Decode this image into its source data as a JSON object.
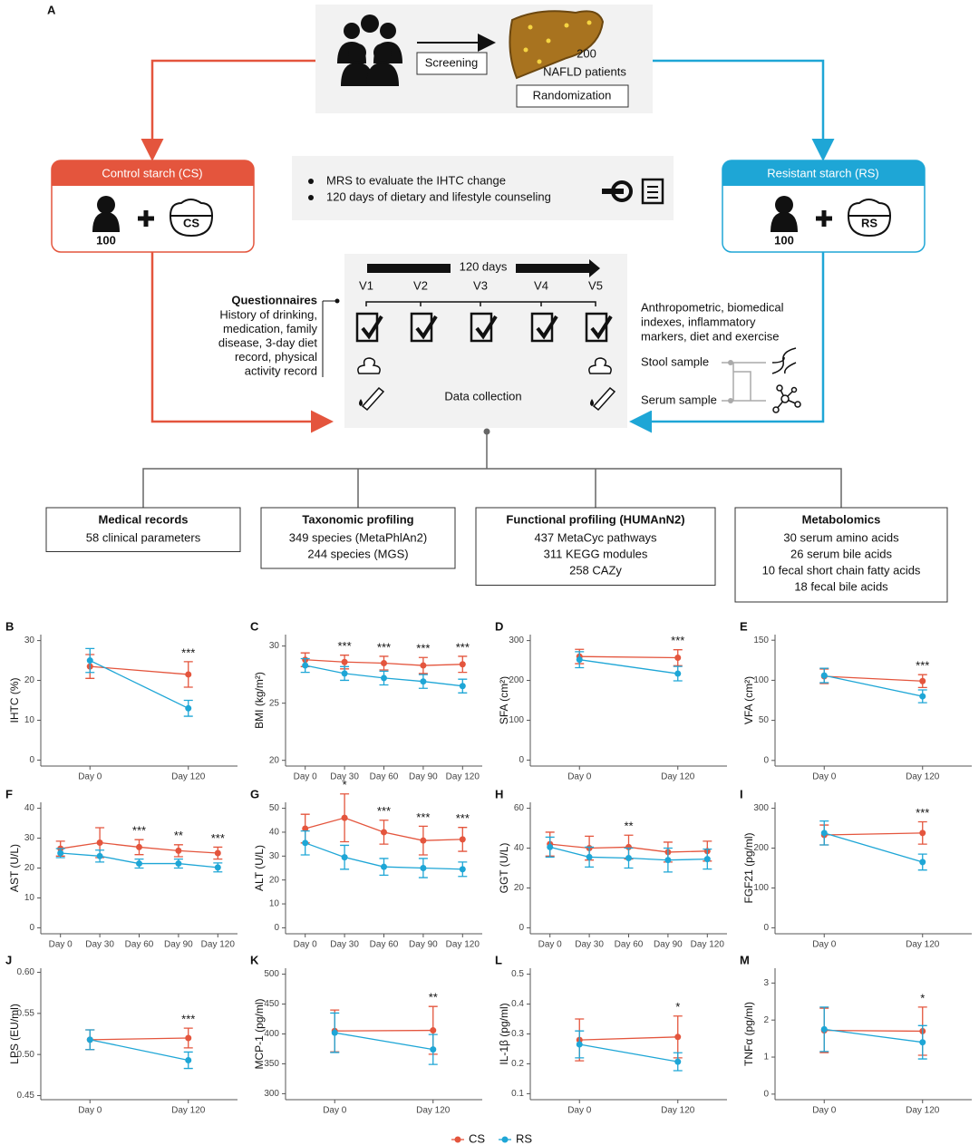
{
  "diagram": {
    "panel": "A",
    "screening": "Screening",
    "patients_count": 200,
    "patients": "NAFLD patients",
    "randomization": "Randomization",
    "cs_group": {
      "title": "Control starch (CS)",
      "count": 100,
      "bowl": "CS"
    },
    "rs_group": {
      "title": "Resistant starch (RS)",
      "count": 100,
      "bowl": "RS"
    },
    "protocol": [
      "MRS to evaluate the IHTC change",
      "120 days of dietary and lifestyle counseling"
    ],
    "duration": "120 days",
    "visits": [
      "V1",
      "V2",
      "V3",
      "V4",
      "V5"
    ],
    "questionnaires": {
      "title": "Questionnaires",
      "lines": [
        "History of drinking,",
        "medication, family",
        "disease, 3-day diet",
        "record, physical",
        "activity record"
      ]
    },
    "measures": [
      "Anthropometric, biomedical",
      "indexes, inflammatory",
      "markers, diet and exercise"
    ],
    "stool": "Stool sample",
    "serum": "Serum sample",
    "data_collection": "Data collection",
    "outputs": [
      {
        "title": "Medical records",
        "lines": [
          "58 clinical parameters"
        ]
      },
      {
        "title": "Taxonomic profiling",
        "lines": [
          "349 species (MetaPhlAn2)",
          "244  species (MGS)"
        ]
      },
      {
        "title": "Functional  profiling (HUMAnN2)",
        "lines": [
          "437 MetaCyc pathways",
          "311 KEGG modules",
          "258 CAZy"
        ]
      },
      {
        "title": "Metabolomics",
        "lines": [
          "30 serum amino acids",
          "26 serum bile acids",
          "10 fecal short chain fatty acids",
          "18 fecal bile acids"
        ]
      }
    ]
  },
  "chart_data": [
    {
      "type": "line",
      "panel": "B",
      "ylabel": "IHTC (%)",
      "categories": [
        "Day 0",
        "Day 120"
      ],
      "series": [
        {
          "name": "CS",
          "color": "#e4553d",
          "values": [
            23.5,
            21.5
          ],
          "errors": [
            3,
            3.2
          ]
        },
        {
          "name": "RS",
          "color": "#1ea6d6",
          "values": [
            25,
            13
          ],
          "errors": [
            3,
            2
          ]
        }
      ],
      "significance": [
        null,
        "***"
      ],
      "ylim": [
        -1.5,
        31.5
      ],
      "yticks": [
        0,
        10,
        20,
        30
      ]
    },
    {
      "type": "line",
      "panel": "C",
      "ylabel": "BMI (kg/m²)",
      "categories": [
        "Day 0",
        "Day 30",
        "Day 60",
        "Day 90",
        "Day 120"
      ],
      "series": [
        {
          "name": "CS",
          "color": "#e4553d",
          "values": [
            28.8,
            28.6,
            28.5,
            28.3,
            28.4
          ],
          "errors": [
            0.6,
            0.6,
            0.6,
            0.7,
            0.7
          ]
        },
        {
          "name": "RS",
          "color": "#1ea6d6",
          "values": [
            28.3,
            27.6,
            27.2,
            26.9,
            26.5
          ],
          "errors": [
            0.6,
            0.6,
            0.6,
            0.6,
            0.6
          ]
        }
      ],
      "significance": [
        null,
        "***",
        "***",
        "***",
        "***"
      ],
      "ylim": [
        19.5,
        31
      ],
      "yticks": [
        20,
        25,
        30
      ]
    },
    {
      "type": "line",
      "panel": "D",
      "ylabel": "SFA (cm²)",
      "categories": [
        "Day 0",
        "Day 120"
      ],
      "series": [
        {
          "name": "CS",
          "color": "#e4553d",
          "values": [
            260,
            257
          ],
          "errors": [
            18,
            20
          ]
        },
        {
          "name": "RS",
          "color": "#1ea6d6",
          "values": [
            252,
            217
          ],
          "errors": [
            20,
            18
          ]
        }
      ],
      "significance": [
        null,
        "***"
      ],
      "ylim": [
        -15,
        315
      ],
      "yticks": [
        0,
        100,
        200,
        300
      ]
    },
    {
      "type": "line",
      "panel": "E",
      "ylabel": "VFA (cm²)",
      "categories": [
        "Day 0",
        "Day 120"
      ],
      "series": [
        {
          "name": "CS",
          "color": "#e4553d",
          "values": [
            105,
            99
          ],
          "errors": [
            9,
            8
          ]
        },
        {
          "name": "RS",
          "color": "#1ea6d6",
          "values": [
            106,
            80
          ],
          "errors": [
            9,
            8
          ]
        }
      ],
      "significance": [
        null,
        "***"
      ],
      "ylim": [
        -7,
        157
      ],
      "yticks": [
        0,
        50,
        100,
        150
      ]
    },
    {
      "type": "line",
      "panel": "F",
      "ylabel": "AST (U/L)",
      "categories": [
        "Day 0",
        "Day 30",
        "Day 60",
        "Day 90",
        "Day 120"
      ],
      "series": [
        {
          "name": "CS",
          "color": "#e4553d",
          "values": [
            26.5,
            28.5,
            27,
            25.8,
            25
          ],
          "errors": [
            2.5,
            5,
            2.5,
            2,
            2
          ]
        },
        {
          "name": "RS",
          "color": "#1ea6d6",
          "values": [
            25,
            24,
            21.5,
            21.5,
            20.2
          ],
          "errors": [
            1.5,
            2,
            1.5,
            1.5,
            1.5
          ]
        }
      ],
      "significance": [
        null,
        null,
        "***",
        "**",
        "***"
      ],
      "ylim": [
        -2,
        42
      ],
      "yticks": [
        0,
        10,
        20,
        30,
        40
      ]
    },
    {
      "type": "line",
      "panel": "G",
      "ylabel": "ALT (U/L)",
      "categories": [
        "Day 0",
        "Day 30",
        "Day 60",
        "Day 90",
        "Day 120"
      ],
      "series": [
        {
          "name": "CS",
          "color": "#e4553d",
          "values": [
            41.5,
            46,
            40,
            36.5,
            37
          ],
          "errors": [
            6,
            10,
            5,
            6,
            5
          ]
        },
        {
          "name": "RS",
          "color": "#1ea6d6",
          "values": [
            35.5,
            29.5,
            25.5,
            25,
            24.5
          ],
          "errors": [
            5,
            5,
            3.5,
            4,
            3
          ]
        }
      ],
      "significance": [
        null,
        "*",
        "***",
        "***",
        "***"
      ],
      "ylim": [
        -2.5,
        52.5
      ],
      "yticks": [
        0,
        10,
        20,
        30,
        40,
        50
      ]
    },
    {
      "type": "line",
      "panel": "H",
      "ylabel": "GGT (U/L)",
      "categories": [
        "Day 0",
        "Day 30",
        "Day 60",
        "Day 90",
        "Day 120"
      ],
      "series": [
        {
          "name": "CS",
          "color": "#e4553d",
          "values": [
            42,
            40,
            40.5,
            38,
            38.5
          ],
          "errors": [
            6,
            6,
            6,
            5,
            5
          ]
        },
        {
          "name": "RS",
          "color": "#1ea6d6",
          "values": [
            40.5,
            35.5,
            35,
            34,
            34.5
          ],
          "errors": [
            5,
            5,
            5,
            6,
            5
          ]
        }
      ],
      "significance": [
        null,
        null,
        "**",
        null,
        null
      ],
      "ylim": [
        -3,
        63
      ],
      "yticks": [
        0,
        20,
        40,
        60
      ]
    },
    {
      "type": "line",
      "panel": "I",
      "ylabel": "FGF21 (pg/ml)",
      "categories": [
        "Day 0",
        "Day 120"
      ],
      "series": [
        {
          "name": "CS",
          "color": "#e4553d",
          "values": [
            233,
            238
          ],
          "errors": [
            25,
            28
          ]
        },
        {
          "name": "RS",
          "color": "#1ea6d6",
          "values": [
            238,
            165
          ],
          "errors": [
            30,
            20
          ]
        }
      ],
      "significance": [
        null,
        "***"
      ],
      "ylim": [
        -15,
        315
      ],
      "yticks": [
        0,
        100,
        200,
        300
      ]
    },
    {
      "type": "line",
      "panel": "J",
      "ylabel": "LPS (EU/ml)",
      "categories": [
        "Day 0",
        "Day 120"
      ],
      "series": [
        {
          "name": "CS",
          "color": "#e4553d",
          "values": [
            0.518,
            0.52
          ],
          "errors": [
            0.012,
            0.012
          ]
        },
        {
          "name": "RS",
          "color": "#1ea6d6",
          "values": [
            0.518,
            0.493
          ],
          "errors": [
            0.012,
            0.01
          ]
        }
      ],
      "significance": [
        null,
        "***"
      ],
      "ylim": [
        0.445,
        0.605
      ],
      "yticks": [
        {
          "value": 0.45,
          "label": "0.45"
        },
        {
          "value": 0.5,
          "label": "0.50"
        },
        {
          "value": 0.55,
          "label": "0.55"
        },
        {
          "value": 0.6,
          "label": "0.60"
        }
      ]
    },
    {
      "type": "line",
      "panel": "K",
      "ylabel": "MCP-1 (pg/ml)",
      "categories": [
        "Day 0",
        "Day 120"
      ],
      "series": [
        {
          "name": "CS",
          "color": "#e4553d",
          "values": [
            405,
            406
          ],
          "errors": [
            35,
            40
          ]
        },
        {
          "name": "RS",
          "color": "#1ea6d6",
          "values": [
            402,
            374
          ],
          "errors": [
            33,
            25
          ]
        }
      ],
      "significance": [
        null,
        "**"
      ],
      "ylim": [
        290,
        510
      ],
      "yticks": [
        300,
        350,
        400,
        450,
        500
      ]
    },
    {
      "type": "line",
      "panel": "L",
      "ylabel": "IL-1β (pg/ml)",
      "categories": [
        "Day 0",
        "Day 120"
      ],
      "series": [
        {
          "name": "CS",
          "color": "#e4553d",
          "values": [
            0.28,
            0.29
          ],
          "errors": [
            0.07,
            0.07
          ]
        },
        {
          "name": "RS",
          "color": "#1ea6d6",
          "values": [
            0.265,
            0.207
          ],
          "errors": [
            0.045,
            0.03
          ]
        }
      ],
      "significance": [
        null,
        "*"
      ],
      "ylim": [
        0.08,
        0.52
      ],
      "yticks": [
        0.1,
        0.2,
        0.3,
        0.4,
        0.5
      ]
    },
    {
      "type": "line",
      "panel": "M",
      "ylabel": "TNFα (pg/ml)",
      "categories": [
        "Day 0",
        "Day 120"
      ],
      "series": [
        {
          "name": "CS",
          "color": "#e4553d",
          "values": [
            1.72,
            1.7
          ],
          "errors": [
            0.6,
            0.65
          ]
        },
        {
          "name": "RS",
          "color": "#1ea6d6",
          "values": [
            1.75,
            1.4
          ],
          "errors": [
            0.6,
            0.45
          ]
        }
      ],
      "significance": [
        null,
        "*"
      ],
      "ylim": [
        -0.15,
        3.4
      ],
      "yticks": [
        0,
        1,
        2,
        3
      ]
    }
  ]
}
